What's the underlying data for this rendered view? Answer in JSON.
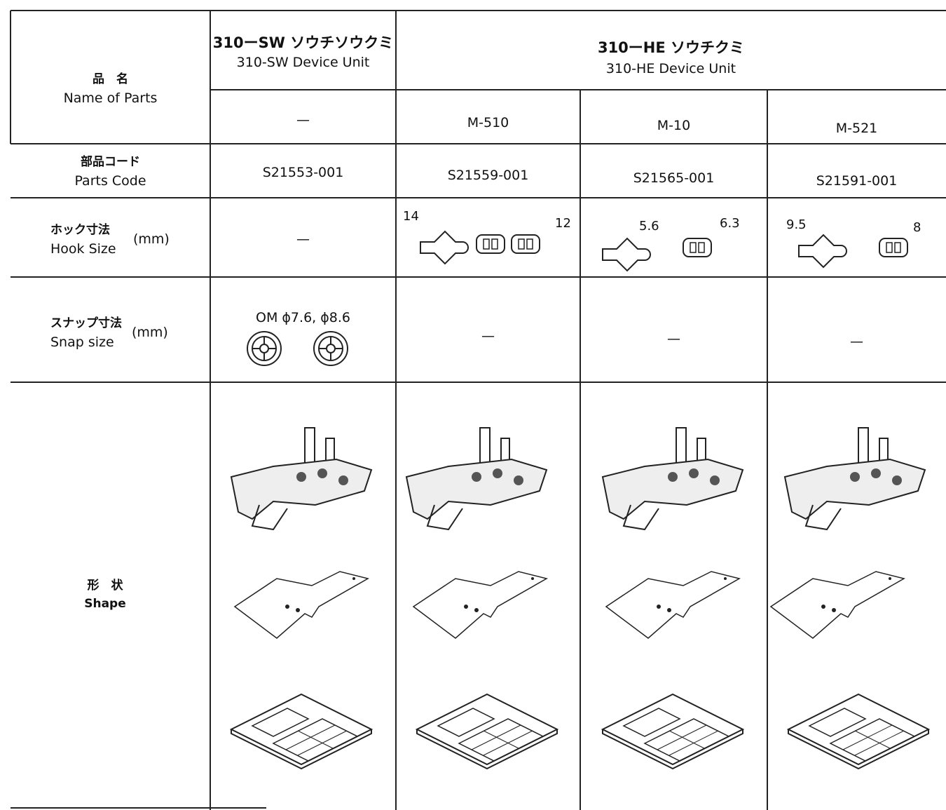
{
  "row_headers": {
    "name": {
      "ja": "品　名",
      "en": "Name of Parts"
    },
    "code": {
      "ja": "部品コード",
      "en": "Parts Code"
    },
    "hook": {
      "ja": "ホック寸法",
      "en": "Hook Size",
      "unit": "(mm)"
    },
    "snap": {
      "ja": "スナップ寸法",
      "en": "Snap size",
      "unit": "(mm)"
    },
    "shape": {
      "ja": "形　状",
      "en": "Shape"
    }
  },
  "groups": [
    {
      "ja": "310ーSW ソウチソウクミ",
      "en": "310-SW Device Unit"
    },
    {
      "ja": "310ーHE ソウチクミ",
      "en": "310-HE Device Unit"
    }
  ],
  "columns": [
    {
      "model": "—",
      "code": "S21553-001",
      "hook": "—",
      "snap": "OM ϕ7.6, ϕ8.6"
    },
    {
      "model": "M-510",
      "code": "S21559-001",
      "hook": [
        "14",
        "12"
      ],
      "snap": "—"
    },
    {
      "model": "M-10",
      "code": "S21565-001",
      "hook": [
        "5.6",
        "6.3"
      ],
      "snap": "—"
    },
    {
      "model": "M-521",
      "code": "S21591-001",
      "hook": [
        "9.5",
        "8"
      ],
      "snap": "—"
    }
  ]
}
